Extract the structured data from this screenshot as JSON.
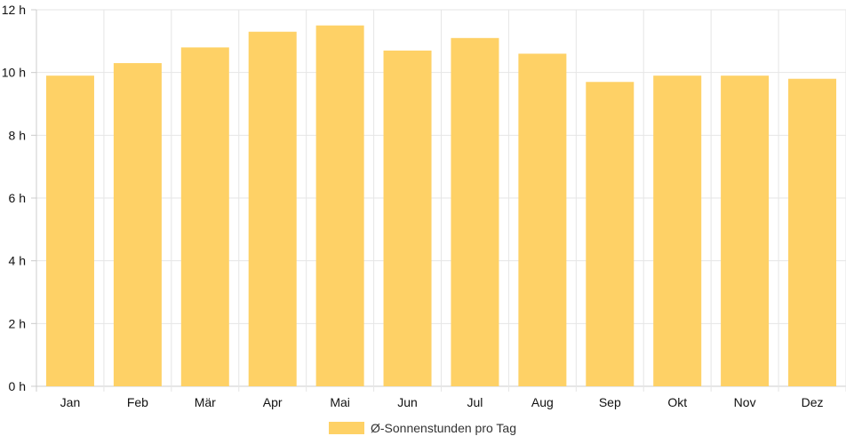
{
  "chart_data": {
    "type": "bar",
    "categories": [
      "Jan",
      "Feb",
      "Mär",
      "Apr",
      "Mai",
      "Jun",
      "Jul",
      "Aug",
      "Sep",
      "Okt",
      "Nov",
      "Dez"
    ],
    "series": [
      {
        "name": "Ø-Sonnenstunden pro Tag",
        "values": [
          9.9,
          10.3,
          10.8,
          11.3,
          11.5,
          10.7,
          11.1,
          10.6,
          9.7,
          9.9,
          9.9,
          9.8
        ],
        "color": "#fed166"
      }
    ],
    "ylim": [
      0,
      12
    ],
    "y_ticks": [
      "0 h",
      "2 h",
      "4 h",
      "6 h",
      "8 h",
      "10 h",
      "12 h"
    ],
    "y_tick_values": [
      0,
      2,
      4,
      6,
      8,
      10,
      12
    ],
    "grid": true,
    "legend_position": "bottom",
    "grid_color": "#e6e6e6",
    "axis_color": "#cccccc"
  }
}
